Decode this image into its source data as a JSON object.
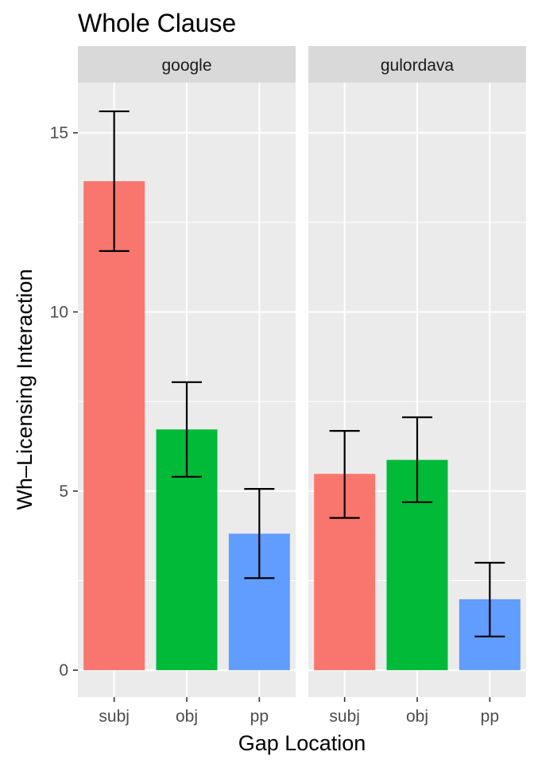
{
  "chart_data": {
    "type": "bar",
    "title": "Whole Clause",
    "xlabel": "Gap Location",
    "ylabel": "Wh–Licensing Interaction",
    "categories": [
      "subj",
      "obj",
      "pp"
    ],
    "yticks": [
      "0",
      "5",
      "10",
      "15"
    ],
    "ylim": [
      -0.75,
      16.4
    ],
    "grid": true,
    "legend": "none",
    "colors": {
      "subj": "#F8766D",
      "obj": "#00BA38",
      "pp": "#619CFF",
      "panel_bg": "#EBEBEB",
      "strip_bg": "#D9D9D9",
      "grid": "#FFFFFF"
    },
    "panels": [
      {
        "name": "google",
        "values": [
          13.65,
          6.72,
          3.81
        ],
        "error_low": [
          11.7,
          5.4,
          2.57
        ],
        "error_high": [
          15.6,
          8.04,
          5.06
        ]
      },
      {
        "name": "gulordava",
        "values": [
          5.48,
          5.87,
          1.98
        ],
        "error_low": [
          4.25,
          4.69,
          0.94
        ],
        "error_high": [
          6.68,
          7.06,
          3.0
        ]
      }
    ]
  }
}
